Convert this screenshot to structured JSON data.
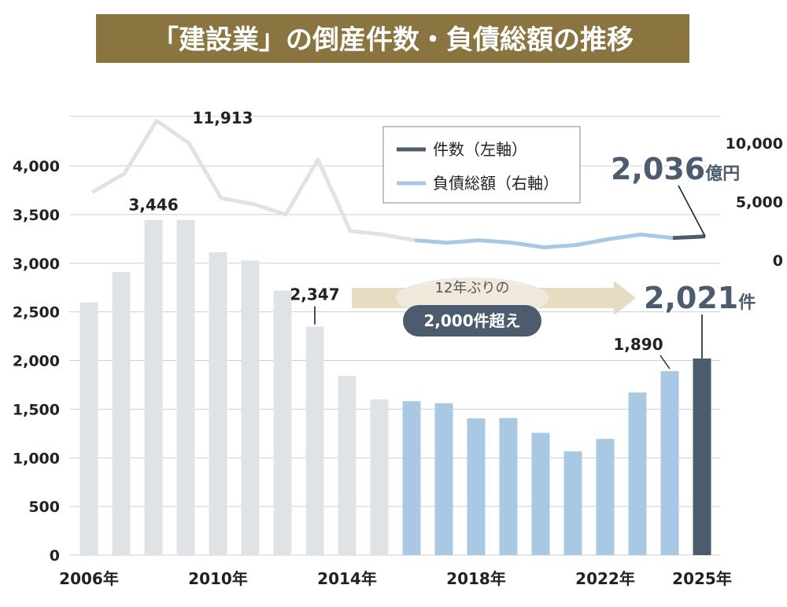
{
  "title": "「建設業」の倒産件数・負債総額の推移",
  "chart_data": {
    "type": "bar",
    "title": "「建設業」の倒産件数・負債総額の推移",
    "years": [
      2006,
      2007,
      2008,
      2009,
      2010,
      2011,
      2012,
      2013,
      2014,
      2015,
      2016,
      2017,
      2018,
      2019,
      2020,
      2021,
      2022,
      2023,
      2024,
      2025
    ],
    "x_tick_labels": [
      "2006年",
      "2010年",
      "2014年",
      "2018年",
      "2022年",
      "2025年"
    ],
    "x_tick_years": [
      2006,
      2010,
      2014,
      2018,
      2022,
      2025
    ],
    "left_axis": {
      "ylim": [
        0,
        4000
      ],
      "ticks": [
        0,
        500,
        1000,
        1500,
        2000,
        2500,
        3000,
        3500,
        4000
      ],
      "tick_labels": [
        "0",
        "500",
        "1,000",
        "1,500",
        "2,000",
        "2,500",
        "3,000",
        "3,500",
        "4,000"
      ]
    },
    "right_axis": {
      "ylim": [
        0,
        10000
      ],
      "ticks": [
        0,
        5000,
        10000
      ],
      "tick_labels": [
        "0",
        "5,000",
        "10,000"
      ]
    },
    "series": [
      {
        "name": "件数（左軸）",
        "axis": "left",
        "type": "bar",
        "values": [
          2597,
          2909,
          3446,
          3446,
          3113,
          3027,
          2720,
          2347,
          1843,
          1600,
          1582,
          1561,
          1405,
          1409,
          1257,
          1066,
          1194,
          1671,
          1890,
          2021
        ]
      },
      {
        "name": "負債総額（右軸）",
        "axis": "right",
        "type": "line",
        "values": [
          5800,
          7400,
          11913,
          10000,
          5300,
          4800,
          3900,
          8600,
          2500,
          2200,
          1700,
          1500,
          1700,
          1500,
          1100,
          1300,
          1800,
          2200,
          1900,
          2036
        ]
      }
    ],
    "colors": {
      "past": "#dfe3e5",
      "recent": "#a8c8e4",
      "latest": "#4c5b6e"
    },
    "data_labels": [
      {
        "year": 2008,
        "series": "bars",
        "text": "3,446"
      },
      {
        "year": 2008,
        "series": "line",
        "text": "11,913"
      },
      {
        "year": 2013,
        "series": "bars",
        "text": "2,347"
      },
      {
        "year": 2024,
        "series": "bars",
        "text": "1,890"
      }
    ],
    "callouts": {
      "line": {
        "number": "2,036",
        "unit": "億円"
      },
      "bar": {
        "number": "2,021",
        "unit": "件"
      }
    },
    "annotation": {
      "top": "12年ぶりの",
      "pill": "2,000件超え"
    },
    "legend_placement": "top-right",
    "grid": true
  }
}
